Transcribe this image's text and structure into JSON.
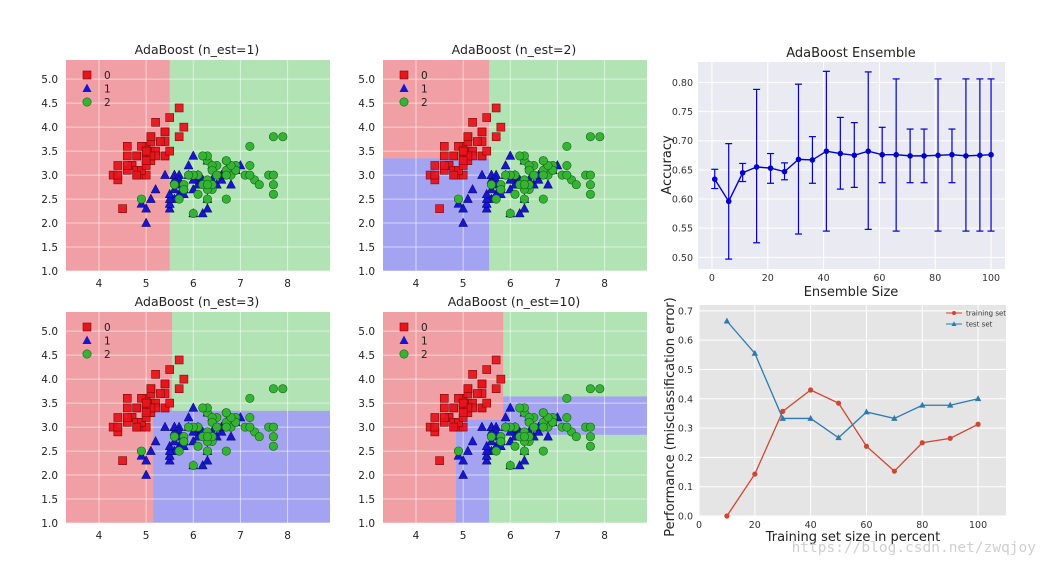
{
  "decision_panels": [
    {
      "title": "AdaBoost (n_est=1)"
    },
    {
      "title": "AdaBoost (n_est=2)"
    },
    {
      "title": "AdaBoost (n_est=3)"
    },
    {
      "title": "AdaBoost (n_est=10)"
    }
  ],
  "legend_labels": [
    "0",
    "1",
    "2"
  ],
  "colors": {
    "class0": "#e8141c",
    "class1": "#1515d2",
    "class2": "#33b533",
    "region0": "#f0a0a4",
    "region1": "#a3a3f2",
    "region2": "#b2e3b5",
    "curve_blue": "#0000cc",
    "train_red": "#d2452f",
    "test_blue": "#2a7bb4"
  },
  "watermark": "https://blog.csdn.net/zwqjoy",
  "chart_data": [
    {
      "type": "scatter",
      "title": "AdaBoost (n_est=1)",
      "xlim": [
        3.3,
        8.9
      ],
      "ylim": [
        1.0,
        5.4
      ],
      "xticks": [
        4,
        5,
        6,
        7,
        8
      ],
      "yticks": [
        1.0,
        1.5,
        2.0,
        2.5,
        3.0,
        3.5,
        4.0,
        4.5,
        5.0
      ],
      "legend": [
        "0",
        "1",
        "2"
      ],
      "legend_position": "top-left",
      "grid": true,
      "regions": [
        {
          "class": 0,
          "x": [
            3.3,
            5.5
          ],
          "y": [
            1.0,
            5.4
          ]
        },
        {
          "class": 2,
          "x": [
            5.5,
            8.9
          ],
          "y": [
            1.0,
            5.4
          ]
        }
      ]
    },
    {
      "type": "scatter",
      "title": "AdaBoost (n_est=2)",
      "xlim": [
        3.3,
        8.9
      ],
      "ylim": [
        1.0,
        5.4
      ],
      "xticks": [
        4,
        5,
        6,
        7,
        8
      ],
      "yticks": [
        1.0,
        1.5,
        2.0,
        2.5,
        3.0,
        3.5,
        4.0,
        4.5,
        5.0
      ],
      "legend": [
        "0",
        "1",
        "2"
      ],
      "legend_position": "top-left",
      "grid": true,
      "regions": [
        {
          "class": 0,
          "x": [
            3.3,
            5.55
          ],
          "y": [
            3.35,
            5.4
          ]
        },
        {
          "class": 1,
          "x": [
            3.3,
            5.55
          ],
          "y": [
            1.0,
            3.35
          ]
        },
        {
          "class": 2,
          "x": [
            5.55,
            8.9
          ],
          "y": [
            1.0,
            5.4
          ]
        }
      ]
    },
    {
      "type": "scatter",
      "title": "AdaBoost (n_est=3)",
      "xlim": [
        3.3,
        8.9
      ],
      "ylim": [
        1.0,
        5.4
      ],
      "xticks": [
        4,
        5,
        6,
        7,
        8
      ],
      "yticks": [
        1.0,
        1.5,
        2.0,
        2.5,
        3.0,
        3.5,
        4.0,
        4.5,
        5.0
      ],
      "legend": [
        "0",
        "1",
        "2"
      ],
      "legend_position": "top-left",
      "grid": true,
      "regions": [
        {
          "class": 0,
          "x": [
            3.3,
            5.15
          ],
          "y": [
            1.0,
            5.4
          ]
        },
        {
          "class": 0,
          "x": [
            5.15,
            5.55
          ],
          "y": [
            3.35,
            5.4
          ]
        },
        {
          "class": 1,
          "x": [
            5.15,
            8.9
          ],
          "y": [
            1.0,
            3.35
          ]
        },
        {
          "class": 2,
          "x": [
            5.55,
            8.9
          ],
          "y": [
            3.35,
            5.4
          ]
        }
      ]
    },
    {
      "type": "scatter",
      "title": "AdaBoost (n_est=10)",
      "xlim": [
        3.3,
        8.9
      ],
      "ylim": [
        1.0,
        5.4
      ],
      "xticks": [
        4,
        5,
        6,
        7,
        8
      ],
      "yticks": [
        1.0,
        1.5,
        2.0,
        2.5,
        3.0,
        3.5,
        4.0,
        4.5,
        5.0
      ],
      "legend": [
        "0",
        "1",
        "2"
      ],
      "legend_position": "top-left",
      "grid": true,
      "regions": [
        {
          "class": 0,
          "x": [
            3.3,
            4.85
          ],
          "y": [
            1.0,
            5.4
          ]
        },
        {
          "class": 0,
          "x": [
            4.85,
            5.85
          ],
          "y": [
            3.15,
            5.4
          ]
        },
        {
          "class": 1,
          "x": [
            4.85,
            5.55
          ],
          "y": [
            1.0,
            2.85
          ]
        },
        {
          "class": 2,
          "x": [
            5.55,
            5.85
          ],
          "y": [
            1.0,
            2.85
          ]
        },
        {
          "class": 1,
          "x": [
            4.85,
            5.85
          ],
          "y": [
            2.85,
            3.15
          ]
        },
        {
          "class": 2,
          "x": [
            5.85,
            8.9
          ],
          "y": [
            1.0,
            2.85
          ]
        },
        {
          "class": 1,
          "x": [
            5.85,
            8.9
          ],
          "y": [
            2.85,
            3.65
          ]
        },
        {
          "class": 2,
          "x": [
            5.85,
            8.9
          ],
          "y": [
            3.65,
            5.4
          ]
        }
      ]
    },
    {
      "type": "line",
      "title": "AdaBoost Ensemble",
      "xlabel": "Ensemble Size",
      "ylabel": "Accuracy",
      "xlim": [
        -5,
        105
      ],
      "ylim": [
        0.48,
        0.835
      ],
      "xticks": [
        0,
        20,
        40,
        60,
        80,
        100
      ],
      "yticks": [
        0.5,
        0.55,
        0.6,
        0.65,
        0.7,
        0.75,
        0.8
      ],
      "grid": true,
      "x": [
        1,
        6,
        11,
        16,
        21,
        26,
        31,
        36,
        41,
        46,
        51,
        56,
        61,
        66,
        71,
        76,
        81,
        86,
        91,
        96,
        100
      ],
      "y": [
        0.634,
        0.596,
        0.645,
        0.655,
        0.653,
        0.647,
        0.668,
        0.667,
        0.682,
        0.678,
        0.675,
        0.682,
        0.676,
        0.676,
        0.674,
        0.674,
        0.675,
        0.676,
        0.674,
        0.675,
        0.676
      ],
      "yerr_low": [
        0.618,
        0.497,
        0.63,
        0.525,
        0.627,
        0.633,
        0.54,
        0.627,
        0.545,
        0.617,
        0.62,
        0.548,
        0.628,
        0.545,
        0.628,
        0.628,
        0.545,
        0.628,
        0.545,
        0.545,
        0.545
      ],
      "yerr_high": [
        0.651,
        0.695,
        0.661,
        0.788,
        0.678,
        0.662,
        0.797,
        0.707,
        0.819,
        0.74,
        0.731,
        0.818,
        0.723,
        0.806,
        0.72,
        0.72,
        0.806,
        0.72,
        0.806,
        0.806,
        0.806
      ]
    },
    {
      "type": "line",
      "title": "",
      "xlabel": "Training set size in percent",
      "ylabel": "Performance (misclassification error)",
      "xlim": [
        0,
        110
      ],
      "ylim": [
        0.0,
        0.72
      ],
      "xticks": [
        0,
        20,
        40,
        60,
        80,
        100
      ],
      "yticks": [
        0.0,
        0.1,
        0.2,
        0.3,
        0.4,
        0.5,
        0.6,
        0.7
      ],
      "grid": true,
      "legend_position": "top-right",
      "series": [
        {
          "name": "training set",
          "x": [
            10,
            20,
            30,
            40,
            50,
            60,
            70,
            80,
            90,
            100
          ],
          "y": [
            0.0,
            0.143,
            0.357,
            0.43,
            0.385,
            0.238,
            0.153,
            0.25,
            0.265,
            0.313
          ]
        },
        {
          "name": "test set",
          "x": [
            10,
            20,
            30,
            40,
            50,
            60,
            70,
            80,
            90,
            100
          ],
          "y": [
            0.665,
            0.555,
            0.333,
            0.333,
            0.267,
            0.355,
            0.333,
            0.378,
            0.378,
            0.4
          ]
        }
      ]
    }
  ],
  "iris_points": {
    "class0": [
      [
        5.1,
        3.5
      ],
      [
        4.9,
        3.0
      ],
      [
        4.7,
        3.2
      ],
      [
        4.6,
        3.1
      ],
      [
        5.0,
        3.6
      ],
      [
        5.4,
        3.9
      ],
      [
        4.6,
        3.4
      ],
      [
        5.0,
        3.4
      ],
      [
        4.4,
        2.9
      ],
      [
        4.9,
        3.1
      ],
      [
        5.4,
        3.7
      ],
      [
        4.8,
        3.4
      ],
      [
        4.8,
        3.0
      ],
      [
        4.3,
        3.0
      ],
      [
        5.8,
        4.0
      ],
      [
        5.7,
        4.4
      ],
      [
        5.4,
        3.9
      ],
      [
        5.1,
        3.5
      ],
      [
        5.7,
        3.8
      ],
      [
        5.1,
        3.8
      ],
      [
        5.4,
        3.4
      ],
      [
        5.1,
        3.7
      ],
      [
        4.6,
        3.6
      ],
      [
        5.1,
        3.3
      ],
      [
        4.8,
        3.4
      ],
      [
        5.0,
        3.0
      ],
      [
        5.0,
        3.4
      ],
      [
        5.2,
        3.5
      ],
      [
        5.2,
        3.4
      ],
      [
        4.7,
        3.2
      ],
      [
        4.8,
        3.1
      ],
      [
        5.4,
        3.4
      ],
      [
        5.2,
        4.1
      ],
      [
        5.5,
        4.2
      ],
      [
        4.9,
        3.1
      ],
      [
        5.0,
        3.2
      ],
      [
        5.5,
        3.5
      ],
      [
        4.9,
        3.6
      ],
      [
        4.4,
        3.0
      ],
      [
        5.1,
        3.4
      ],
      [
        5.0,
        3.5
      ],
      [
        4.5,
        2.3
      ],
      [
        4.4,
        3.2
      ],
      [
        5.0,
        3.5
      ],
      [
        5.1,
        3.8
      ],
      [
        4.8,
        3.0
      ],
      [
        5.1,
        3.8
      ],
      [
        4.6,
        3.2
      ],
      [
        5.3,
        3.7
      ],
      [
        5.0,
        3.3
      ]
    ],
    "class1": [
      [
        7.0,
        3.2
      ],
      [
        6.4,
        3.2
      ],
      [
        6.9,
        3.1
      ],
      [
        5.5,
        2.3
      ],
      [
        6.5,
        2.8
      ],
      [
        5.7,
        2.8
      ],
      [
        6.3,
        3.3
      ],
      [
        4.9,
        2.4
      ],
      [
        6.6,
        2.9
      ],
      [
        5.2,
        2.7
      ],
      [
        5.0,
        2.0
      ],
      [
        5.9,
        3.0
      ],
      [
        6.0,
        2.2
      ],
      [
        6.1,
        2.9
      ],
      [
        5.6,
        2.9
      ],
      [
        6.7,
        3.1
      ],
      [
        5.6,
        3.0
      ],
      [
        5.8,
        2.7
      ],
      [
        6.2,
        2.2
      ],
      [
        5.6,
        2.5
      ],
      [
        5.9,
        3.2
      ],
      [
        6.1,
        2.8
      ],
      [
        6.3,
        2.5
      ],
      [
        6.1,
        2.8
      ],
      [
        6.4,
        2.9
      ],
      [
        6.6,
        3.0
      ],
      [
        6.8,
        2.8
      ],
      [
        6.7,
        3.0
      ],
      [
        6.0,
        2.9
      ],
      [
        5.7,
        2.6
      ],
      [
        5.5,
        2.4
      ],
      [
        5.5,
        2.4
      ],
      [
        5.8,
        2.7
      ],
      [
        6.0,
        2.7
      ],
      [
        5.4,
        3.0
      ],
      [
        6.0,
        3.4
      ],
      [
        6.7,
        3.1
      ],
      [
        6.3,
        2.3
      ],
      [
        5.6,
        3.0
      ],
      [
        5.5,
        2.5
      ],
      [
        5.5,
        2.6
      ],
      [
        6.1,
        3.0
      ],
      [
        5.8,
        2.6
      ],
      [
        5.0,
        2.3
      ],
      [
        5.6,
        2.7
      ],
      [
        5.7,
        3.0
      ],
      [
        5.7,
        2.9
      ],
      [
        6.2,
        2.9
      ],
      [
        5.1,
        2.5
      ],
      [
        5.7,
        2.8
      ]
    ],
    "class2": [
      [
        6.3,
        3.3
      ],
      [
        5.8,
        2.7
      ],
      [
        7.1,
        3.0
      ],
      [
        6.3,
        2.9
      ],
      [
        6.5,
        3.0
      ],
      [
        7.6,
        3.0
      ],
      [
        4.9,
        2.5
      ],
      [
        7.3,
        2.9
      ],
      [
        6.7,
        2.5
      ],
      [
        7.2,
        3.6
      ],
      [
        6.5,
        3.2
      ],
      [
        6.4,
        2.7
      ],
      [
        6.8,
        3.0
      ],
      [
        5.7,
        2.5
      ],
      [
        5.8,
        2.8
      ],
      [
        6.4,
        3.2
      ],
      [
        6.5,
        3.0
      ],
      [
        7.7,
        3.8
      ],
      [
        7.7,
        2.6
      ],
      [
        6.0,
        2.2
      ],
      [
        6.9,
        3.2
      ],
      [
        5.6,
        2.8
      ],
      [
        7.7,
        2.8
      ],
      [
        6.3,
        2.7
      ],
      [
        6.7,
        3.3
      ],
      [
        7.2,
        3.2
      ],
      [
        6.2,
        2.8
      ],
      [
        6.1,
        3.0
      ],
      [
        6.4,
        2.8
      ],
      [
        7.2,
        3.0
      ],
      [
        7.4,
        2.8
      ],
      [
        7.9,
        3.8
      ],
      [
        6.4,
        2.8
      ],
      [
        6.3,
        2.8
      ],
      [
        6.1,
        2.6
      ],
      [
        7.7,
        3.0
      ],
      [
        6.3,
        3.4
      ],
      [
        6.4,
        3.1
      ],
      [
        6.0,
        3.0
      ],
      [
        6.9,
        3.1
      ],
      [
        6.7,
        3.1
      ],
      [
        6.9,
        3.1
      ],
      [
        5.8,
        2.7
      ],
      [
        6.8,
        3.2
      ],
      [
        6.7,
        3.3
      ],
      [
        6.7,
        3.0
      ],
      [
        6.3,
        2.5
      ],
      [
        6.5,
        3.0
      ],
      [
        6.2,
        3.4
      ],
      [
        5.9,
        3.0
      ]
    ]
  }
}
